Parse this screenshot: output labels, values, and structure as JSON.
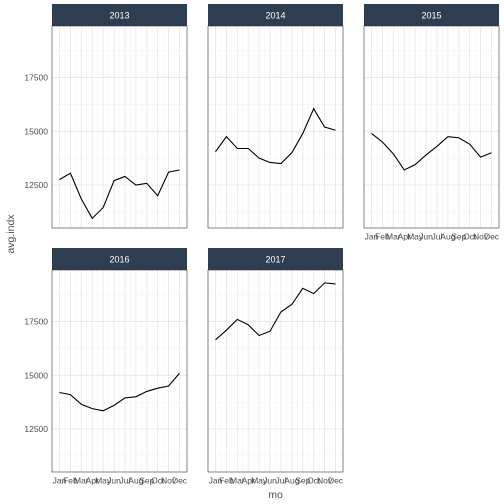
{
  "chart_data": {
    "type": "line",
    "facet_by": "year",
    "xlabel": "mo",
    "ylabel": "avg.indx",
    "categories": [
      "Jan",
      "Feb",
      "Mar",
      "Apr",
      "May",
      "Jun",
      "Jul",
      "Aug",
      "Sep",
      "Oct",
      "Nov",
      "Dec"
    ],
    "y_ticks": [
      12500,
      15000,
      17500
    ],
    "ylim": [
      10500,
      19900
    ],
    "grid": true,
    "colors": {
      "strip_bg": "#2e3e50",
      "panel_border": "#333333",
      "grid_major": "#e6e6e6",
      "grid_minor": "#f2f2f2",
      "line": "#000000"
    },
    "panels": [
      {
        "label": "2013",
        "values": [
          12750,
          13050,
          11850,
          10950,
          11450,
          12700,
          12900,
          12500,
          12580,
          12000,
          13100,
          13200
        ]
      },
      {
        "label": "2014",
        "values": [
          14050,
          14750,
          14200,
          14200,
          13750,
          13550,
          13500,
          14000,
          14900,
          16050,
          15200,
          15050
        ]
      },
      {
        "label": "2015",
        "values": [
          14900,
          14500,
          13950,
          13200,
          13450,
          13900,
          14300,
          14750,
          14700,
          14400,
          13800,
          14000
        ]
      },
      {
        "label": "2016",
        "values": [
          14200,
          14100,
          13650,
          13450,
          13350,
          13600,
          13950,
          14000,
          14250,
          14400,
          14500,
          15100
        ]
      },
      {
        "label": "2017",
        "values": [
          16650,
          17100,
          17600,
          17350,
          16850,
          17050,
          17950,
          18300,
          19050,
          18800,
          19300,
          19250
        ]
      }
    ]
  }
}
